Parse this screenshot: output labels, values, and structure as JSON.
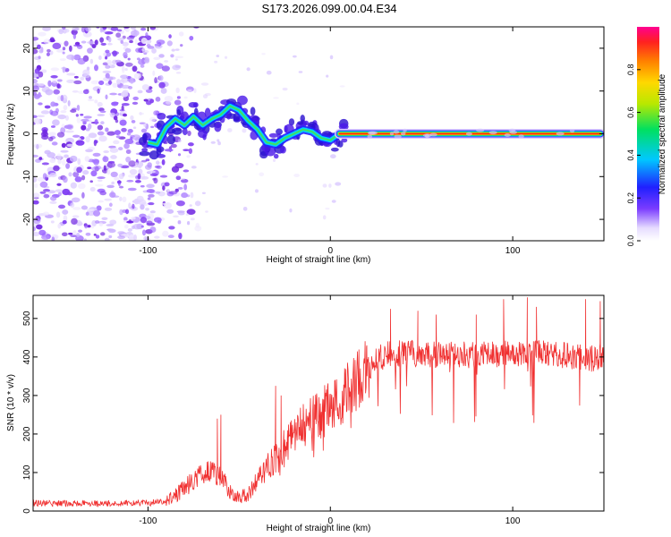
{
  "title": "S173.2026.099.00.04.E34",
  "chart_data": [
    {
      "type": "heatmap",
      "name": "spectrogram",
      "xlabel": "Height of straight line (km)",
      "ylabel": "Frequency (Hz)",
      "xlim": [
        -163,
        150
      ],
      "ylim": [
        -25,
        25
      ],
      "x_ticks": [
        -100,
        0,
        100
      ],
      "x_tick_labels": [
        "-100",
        "0",
        "100"
      ],
      "y_ticks": [
        -20,
        -10,
        0,
        10,
        20
      ],
      "y_tick_labels": [
        "-20",
        "-10",
        "0",
        "10",
        "20"
      ],
      "features": {
        "noise_band_x": [
          -163,
          -80
        ],
        "wavy_track": [
          {
            "x": -100,
            "y": -2.0
          },
          {
            "x": -95,
            "y": -2.5
          },
          {
            "x": -90,
            "y": 1.5
          },
          {
            "x": -85,
            "y": 3.5
          },
          {
            "x": -80,
            "y": 2.0
          },
          {
            "x": -75,
            "y": 4.0
          },
          {
            "x": -70,
            "y": 2.0
          },
          {
            "x": -65,
            "y": 3.5
          },
          {
            "x": -60,
            "y": 4.5
          },
          {
            "x": -55,
            "y": 6.5
          },
          {
            "x": -50,
            "y": 5.5
          },
          {
            "x": -45,
            "y": 3.0
          },
          {
            "x": -40,
            "y": 1.0
          },
          {
            "x": -35,
            "y": -2.0
          },
          {
            "x": -30,
            "y": -2.5
          },
          {
            "x": -25,
            "y": -1.0
          },
          {
            "x": -20,
            "y": 0.0
          },
          {
            "x": -15,
            "y": 1.0
          },
          {
            "x": -10,
            "y": 0.5
          },
          {
            "x": -5,
            "y": -1.0
          },
          {
            "x": 0,
            "y": -1.5
          },
          {
            "x": 5,
            "y": 0.0
          }
        ],
        "steady_line": {
          "x_start": 5,
          "x_end": 148,
          "frequency": 0.0
        }
      }
    },
    {
      "type": "colorbar",
      "name": "amplitude-scale",
      "label": "Normalized spectral amplitude",
      "range": [
        0.0,
        1.0
      ],
      "ticks": [
        0.0,
        0.2,
        0.4,
        0.6,
        0.8
      ],
      "tick_labels": [
        "0.0",
        "0.2",
        "0.4",
        "0.6",
        "0.8"
      ]
    },
    {
      "type": "line",
      "name": "snr-trace",
      "xlabel": "Height of straight line (km)",
      "ylabel": "SNR (10 * v/v)",
      "xlim": [
        -163,
        150
      ],
      "ylim": [
        0,
        560
      ],
      "x_ticks": [
        -100,
        0,
        100
      ],
      "x_tick_labels": [
        "-100",
        "0",
        "100"
      ],
      "y_ticks": [
        0,
        100,
        200,
        300,
        400,
        500
      ],
      "y_tick_labels": [
        "0",
        "100",
        "200",
        "300",
        "400",
        "500"
      ],
      "color": "#f03030",
      "envelope": [
        {
          "x": -163,
          "y": 20
        },
        {
          "x": -120,
          "y": 20
        },
        {
          "x": -100,
          "y": 22
        },
        {
          "x": -90,
          "y": 25
        },
        {
          "x": -85,
          "y": 40
        },
        {
          "x": -80,
          "y": 60
        },
        {
          "x": -75,
          "y": 80
        },
        {
          "x": -70,
          "y": 95
        },
        {
          "x": -65,
          "y": 110
        },
        {
          "x": -60,
          "y": 90
        },
        {
          "x": -55,
          "y": 50
        },
        {
          "x": -50,
          "y": 35
        },
        {
          "x": -45,
          "y": 45
        },
        {
          "x": -40,
          "y": 80
        },
        {
          "x": -35,
          "y": 110
        },
        {
          "x": -30,
          "y": 140
        },
        {
          "x": -25,
          "y": 170
        },
        {
          "x": -20,
          "y": 195
        },
        {
          "x": -15,
          "y": 220
        },
        {
          "x": -10,
          "y": 235
        },
        {
          "x": -5,
          "y": 255
        },
        {
          "x": 0,
          "y": 270
        },
        {
          "x": 5,
          "y": 290
        },
        {
          "x": 10,
          "y": 315
        },
        {
          "x": 15,
          "y": 345
        },
        {
          "x": 20,
          "y": 370
        },
        {
          "x": 25,
          "y": 390
        },
        {
          "x": 30,
          "y": 405
        },
        {
          "x": 40,
          "y": 410
        },
        {
          "x": 60,
          "y": 405
        },
        {
          "x": 80,
          "y": 405
        },
        {
          "x": 100,
          "y": 410
        },
        {
          "x": 120,
          "y": 410
        },
        {
          "x": 135,
          "y": 400
        },
        {
          "x": 145,
          "y": 395
        },
        {
          "x": 150,
          "y": 405
        }
      ],
      "peaks": [
        {
          "x": -62,
          "y": 240
        },
        {
          "x": -60,
          "y": 250
        },
        {
          "x": -30,
          "y": 325
        },
        {
          "x": -27,
          "y": 300
        },
        {
          "x": -5,
          "y": 255
        },
        {
          "x": 20,
          "y": 430
        },
        {
          "x": 33,
          "y": 525
        },
        {
          "x": 48,
          "y": 520
        },
        {
          "x": 58,
          "y": 510
        },
        {
          "x": 80,
          "y": 510
        },
        {
          "x": 95,
          "y": 550
        },
        {
          "x": 108,
          "y": 555
        },
        {
          "x": 113,
          "y": 530
        },
        {
          "x": 140,
          "y": 550
        },
        {
          "x": 148,
          "y": 545
        }
      ]
    }
  ]
}
